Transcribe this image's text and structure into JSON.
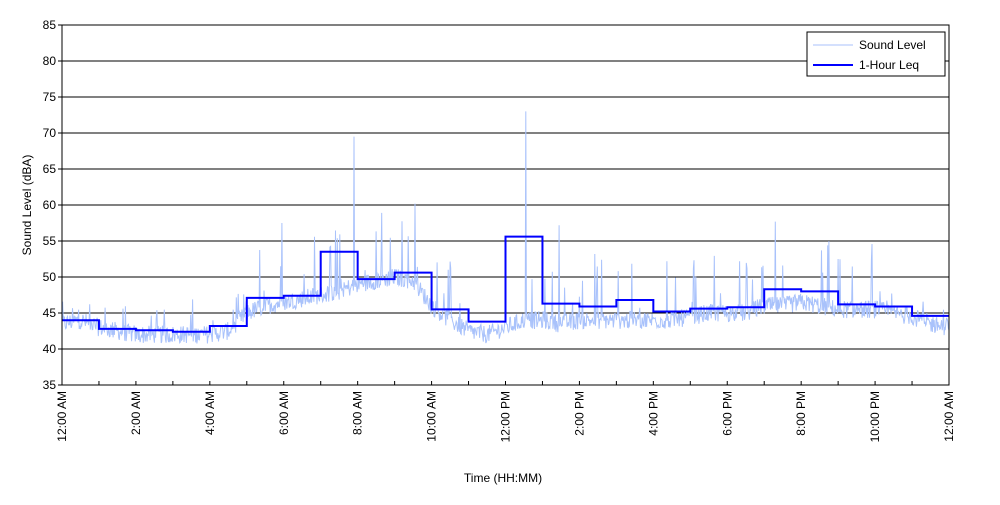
{
  "chart_data": {
    "type": "line",
    "title": "",
    "xlabel": "Time (HH:MM)",
    "ylabel": "Sound Level (dBA)",
    "ylim": [
      35,
      85
    ],
    "yticks": [
      35,
      40,
      45,
      50,
      55,
      60,
      65,
      70,
      75,
      80,
      85
    ],
    "xlim_hours": [
      0,
      24
    ],
    "xtick_labels": [
      "12:00 AM",
      "2:00 AM",
      "4:00 AM",
      "6:00 AM",
      "8:00 AM",
      "10:00 AM",
      "12:00 PM",
      "2:00 PM",
      "4:00 PM",
      "6:00 PM",
      "8:00 PM",
      "10:00 PM",
      "12:00 AM"
    ],
    "grid": "horizontal",
    "legend": "top-right",
    "series": [
      {
        "name": "Sound Level",
        "color": "#a9c2fb",
        "x_hours_step": 0.5,
        "typical_values": [
          43.5,
          44,
          43,
          42.5,
          42,
          42,
          42,
          42,
          42,
          42.5,
          45,
          46,
          46.5,
          47,
          47.5,
          48,
          49,
          49.5,
          50,
          49.5,
          46,
          44,
          42.5,
          42,
          43,
          44,
          44,
          43.5,
          44,
          44,
          44,
          44,
          44,
          44,
          44.5,
          45,
          45,
          45,
          46,
          46,
          46.5,
          46,
          45.5,
          45.5,
          45.5,
          45,
          44.5,
          43.5,
          43
        ],
        "peaks": [
          {
            "hour": 5.95,
            "value": 57.5
          },
          {
            "hour": 7.9,
            "value": 69.5
          },
          {
            "hour": 9.55,
            "value": 60.2
          },
          {
            "hour": 12.55,
            "value": 73
          },
          {
            "hour": 13.45,
            "value": 57.2
          },
          {
            "hour": 19.3,
            "value": 57.7
          }
        ]
      },
      {
        "name": "1-Hour Leq",
        "color": "#0000ff",
        "hours": [
          0,
          1,
          2,
          3,
          4,
          5,
          6,
          7,
          8,
          9,
          10,
          11,
          12,
          13,
          14,
          15,
          16,
          17,
          18,
          19,
          20,
          21,
          22,
          23
        ],
        "values": [
          44.0,
          42.8,
          42.6,
          42.4,
          43.2,
          47.1,
          47.4,
          53.5,
          49.7,
          50.6,
          45.5,
          43.8,
          55.6,
          46.3,
          45.9,
          46.8,
          45.2,
          45.6,
          45.8,
          48.3,
          48.0,
          46.2,
          45.9,
          44.6
        ]
      }
    ]
  }
}
